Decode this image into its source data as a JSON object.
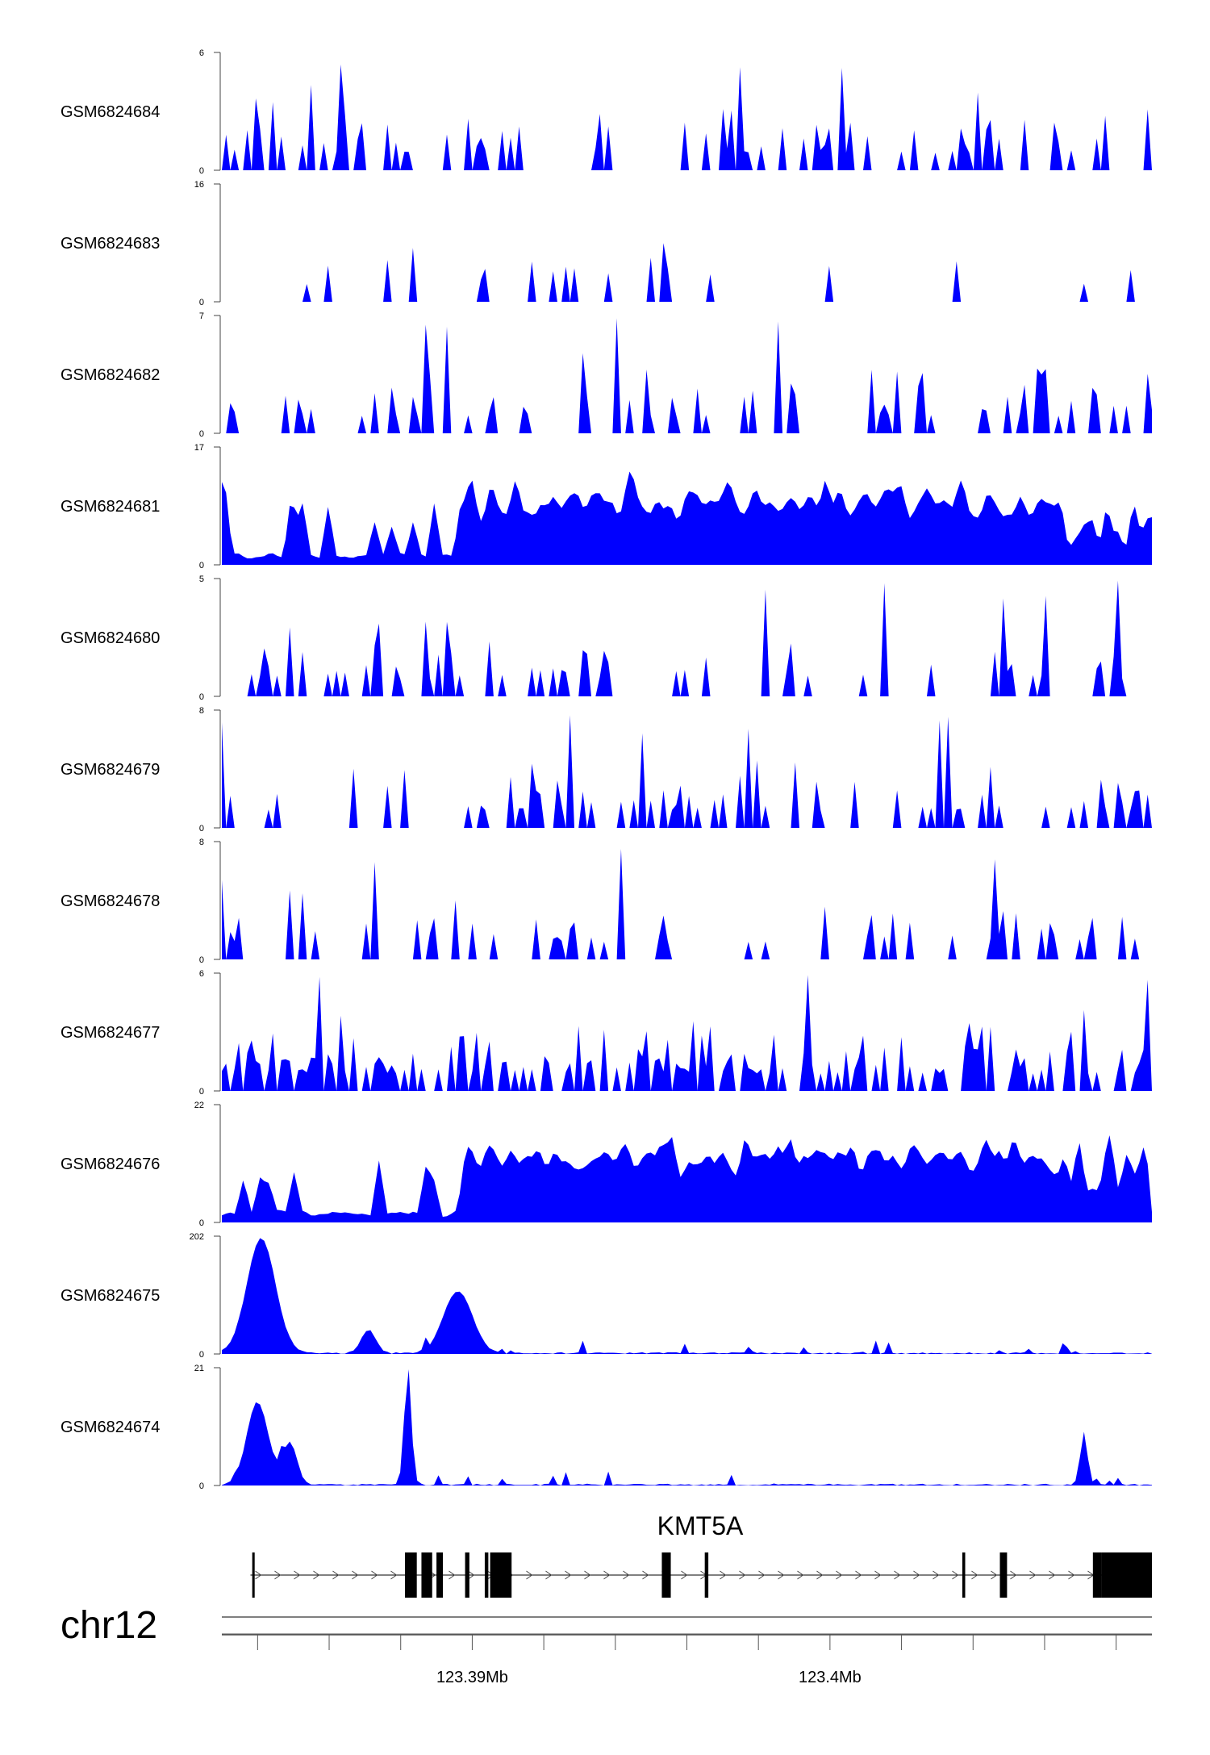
{
  "chart_data": {
    "type": "area",
    "title": "",
    "chromosome": "chr12",
    "x_range_mb": [
      123.383,
      123.409
    ],
    "x_ticks_mb": [
      123.384,
      123.386,
      123.388,
      123.39,
      123.392,
      123.394,
      123.396,
      123.398,
      123.4,
      123.402,
      123.404,
      123.406,
      123.408
    ],
    "x_tick_labels": [
      {
        "value": 123.39,
        "label": "123.39Mb"
      },
      {
        "value": 123.4,
        "label": "123.4Mb"
      }
    ],
    "series_color": "#0000ff",
    "tracks": [
      {
        "name": "GSM6824684",
        "ymax": 6,
        "ymin_label": "0",
        "ymax_label": "6",
        "profile": "sparse"
      },
      {
        "name": "GSM6824683",
        "ymax": 16,
        "ymin_label": "0",
        "ymax_label": "16",
        "profile": "very_sparse"
      },
      {
        "name": "GSM6824682",
        "ymax": 7,
        "ymin_label": "0",
        "ymax_label": "7",
        "profile": "sparse"
      },
      {
        "name": "GSM6824681",
        "ymax": 17,
        "ymin_label": "0",
        "ymax_label": "17",
        "profile": "broad_right"
      },
      {
        "name": "GSM6824680",
        "ymax": 5,
        "ymin_label": "0",
        "ymax_label": "5",
        "profile": "sparse"
      },
      {
        "name": "GSM6824679",
        "ymax": 8,
        "ymin_label": "0",
        "ymax_label": "8",
        "profile": "sparse"
      },
      {
        "name": "GSM6824678",
        "ymax": 8,
        "ymin_label": "0",
        "ymax_label": "8",
        "profile": "sparse"
      },
      {
        "name": "GSM6824677",
        "ymax": 6,
        "ymin_label": "0",
        "ymax_label": "6",
        "profile": "dense"
      },
      {
        "name": "GSM6824676",
        "ymax": 22,
        "ymin_label": "0",
        "ymax_label": "22",
        "profile": "broad_right"
      },
      {
        "name": "GSM6824675",
        "ymax": 202,
        "ymin_label": "0",
        "ymax_label": "202",
        "peaks_mb": [
          {
            "center": 123.3841,
            "height": 200,
            "width": 0.0004
          },
          {
            "center": 123.3896,
            "height": 108,
            "width": 0.0004
          },
          {
            "center": 123.3871,
            "height": 40,
            "width": 0.0002
          }
        ]
      },
      {
        "name": "GSM6824674",
        "ymax": 21,
        "ymin_label": "0",
        "ymax_label": "21",
        "peaks_mb": [
          {
            "center": 123.384,
            "height": 15,
            "width": 0.0003
          },
          {
            "center": 123.3882,
            "height": 20.5,
            "width": 0.0001
          },
          {
            "center": 123.4071,
            "height": 9.5,
            "width": 0.0001
          },
          {
            "center": 123.3849,
            "height": 7.5,
            "width": 0.0002
          }
        ]
      }
    ],
    "gene": {
      "name": "KMT5A",
      "strand": "+",
      "start_mb": 123.3838,
      "end_mb": 123.409,
      "exons_mb": [
        [
          123.38385,
          123.3839
        ],
        [
          123.38812,
          123.38845
        ],
        [
          123.38858,
          123.38888
        ],
        [
          123.389,
          123.38918
        ],
        [
          123.3898,
          123.38992
        ],
        [
          123.39035,
          123.39045
        ],
        [
          123.3905,
          123.3911
        ],
        [
          123.3953,
          123.39555
        ],
        [
          123.3965,
          123.3966
        ],
        [
          123.4037,
          123.40378
        ],
        [
          123.40475,
          123.40495
        ],
        [
          123.40735,
          123.4076
        ],
        [
          123.4076,
          123.409
        ]
      ]
    }
  }
}
